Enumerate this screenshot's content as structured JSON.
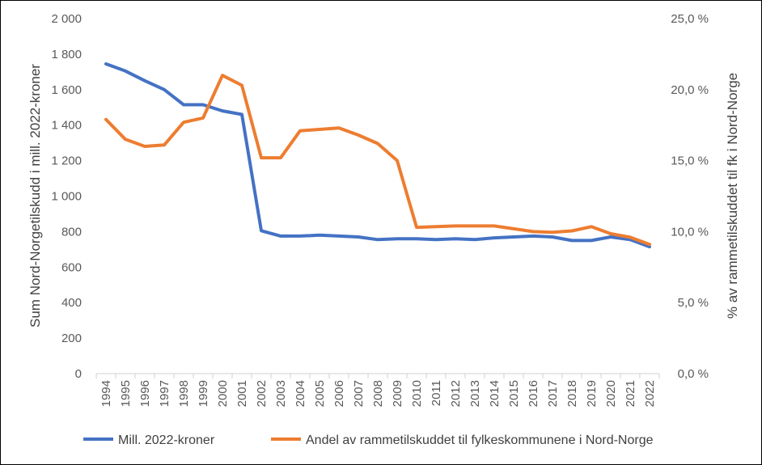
{
  "chart_data": {
    "type": "line",
    "title": "",
    "x": [
      "1994",
      "1995",
      "1996",
      "1997",
      "1998",
      "1999",
      "2000",
      "2001",
      "2002",
      "2003",
      "2004",
      "2005",
      "2006",
      "2007",
      "2008",
      "2009",
      "2010",
      "2011",
      "2012",
      "2013",
      "2014",
      "2015",
      "2016",
      "2017",
      "2018",
      "2019",
      "2020",
      "2021",
      "2022"
    ],
    "ylabel_left": "Sum Nord-Norgetilskudd i mill. 2022-kroner",
    "ylabel_right": "% av rammetilskuddet til fk i Nord-Norge",
    "ylim_left": [
      0,
      2000
    ],
    "ylim_right": [
      0,
      25
    ],
    "yticks_left": [
      "0",
      "200",
      "400",
      "600",
      "800",
      "1 000",
      "1 200",
      "1 400",
      "1 600",
      "1 800",
      "2 000"
    ],
    "yticks_right": [
      "0,0 %",
      "5,0 %",
      "10,0 %",
      "15,0 %",
      "20,0 %",
      "25,0 %"
    ],
    "grid": false,
    "legend_position": "bottom",
    "series": [
      {
        "name": "Mill. 2022-kroner",
        "axis": "left",
        "color": "#4472C4",
        "values": [
          1745,
          1705,
          1650,
          1600,
          1515,
          1515,
          1480,
          1460,
          805,
          775,
          775,
          780,
          775,
          770,
          755,
          760,
          760,
          755,
          760,
          755,
          765,
          770,
          775,
          770,
          750,
          750,
          770,
          755,
          715
        ]
      },
      {
        "name": "Andel av rammetilskuddet til fylkeskommunene i Nord-Norge",
        "axis": "right",
        "color": "#ED7D31",
        "values": [
          17.9,
          16.5,
          16.0,
          16.1,
          17.7,
          18.0,
          21.0,
          20.3,
          15.2,
          15.2,
          17.1,
          17.2,
          17.3,
          16.8,
          16.2,
          15.0,
          10.3,
          10.35,
          10.4,
          10.4,
          10.4,
          10.2,
          10.0,
          9.95,
          10.05,
          10.35,
          9.85,
          9.6,
          9.1
        ]
      }
    ]
  }
}
